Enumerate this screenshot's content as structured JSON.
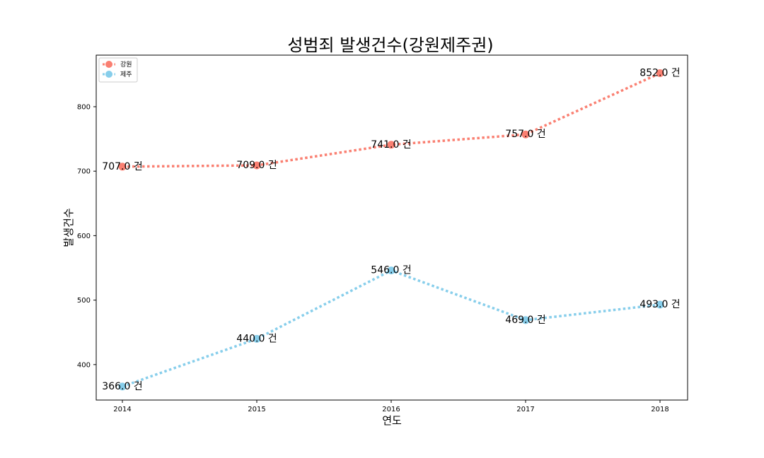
{
  "chart_data": {
    "type": "line",
    "title": "성범죄 발생건수(강원제주권)",
    "xlabel": "연도",
    "ylabel": "발생건수",
    "categories": [
      "2014",
      "2015",
      "2016",
      "2017",
      "2018"
    ],
    "yticks": [
      400,
      500,
      600,
      700,
      800
    ],
    "ylim": [
      345,
      880
    ],
    "value_suffix": " 건",
    "legend_position": "top-left",
    "series": [
      {
        "name": "강원",
        "color": "#fa8072",
        "values": [
          707.0,
          709.0,
          741.0,
          757.0,
          852.0
        ]
      },
      {
        "name": "제주",
        "color": "#87ceeb",
        "values": [
          366.0,
          440.0,
          546.0,
          469.0,
          493.0
        ]
      }
    ]
  }
}
